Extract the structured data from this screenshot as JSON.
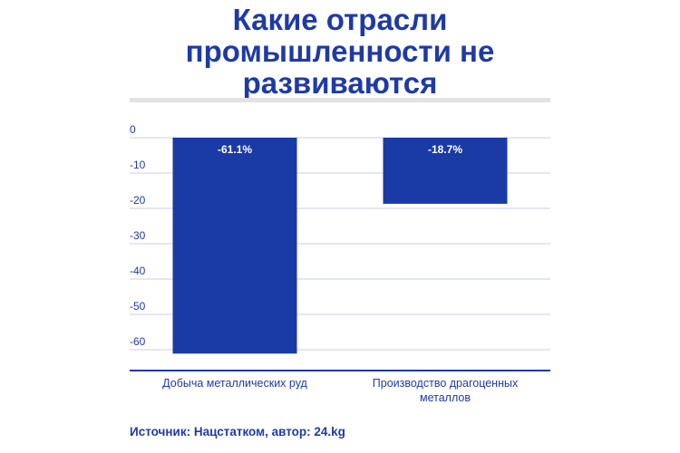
{
  "title_lines": [
    "Какие отрасли",
    "промышленности не",
    "развиваются"
  ],
  "source": "Источник: Нацстатком, автор: 24.kg",
  "colors": {
    "bar": "#1a3aa5",
    "text": "#1f3aa6",
    "grid": "#c9cdea",
    "axis": "#1f3aa6",
    "title_rule": "#e3e3e3"
  },
  "chart_data": {
    "type": "bar",
    "title": "Какие отрасли промышленности не развиваются",
    "categories": [
      [
        "Добыча металлических руд"
      ],
      [
        "Производство драгоценных",
        "металлов"
      ]
    ],
    "values": [
      -61.1,
      -18.7
    ],
    "data_labels": [
      "-61.1%",
      "-18.7%"
    ],
    "yticks": [
      0,
      -10,
      -20,
      -30,
      -40,
      -50,
      -60
    ],
    "ytick_labels": [
      "0",
      "-10",
      "-20",
      "-30",
      "-40",
      "-50",
      "-60"
    ],
    "ylim": [
      -65,
      0
    ],
    "grid": true,
    "xlabel": "",
    "ylabel": ""
  }
}
